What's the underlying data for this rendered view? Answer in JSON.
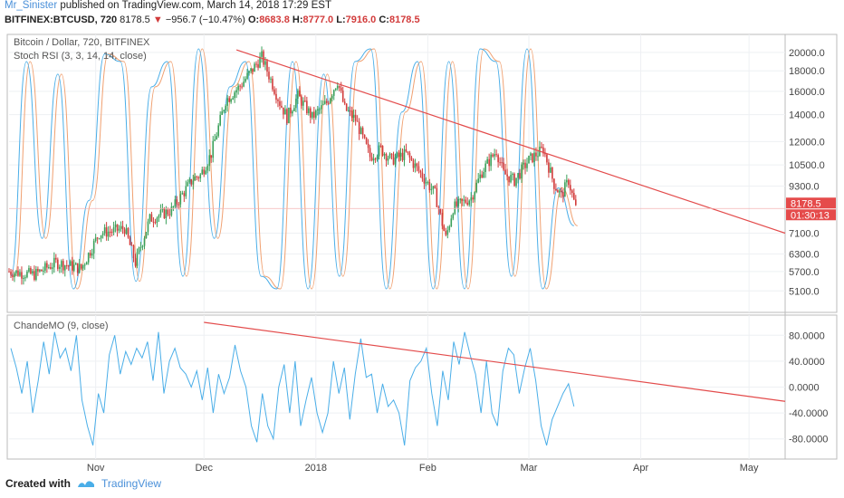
{
  "header": {
    "author": "Mr_Sinister",
    "published": "published on TradingView.com, March 14, 2018 17:29 EST",
    "symbol": "BITFINEX:BTCUSD, 720",
    "last": "8178.5",
    "change": "−956.7 (−10.47%)",
    "o_label": "O:",
    "o": "8683.8",
    "h_label": "H:",
    "h": "8777.0",
    "l_label": "L:",
    "l": "7916.0",
    "c_label": "C:",
    "c": "8178.5"
  },
  "footer": {
    "created_with": "Created with",
    "brand": "TradingView"
  },
  "colors": {
    "up": "#3aa05a",
    "down": "#d23b3b",
    "stoch_k": "#4aaee8",
    "stoch_d": "#f0a070",
    "cmo": "#4aaee8",
    "trend": "#e34b4b",
    "badge": "#e54b4b"
  },
  "chart_data": [
    {
      "type": "candlestick",
      "title": "Bitcoin / Dollar, 720, BITFINEX",
      "ylim": [
        4700,
        21500
      ],
      "y_scale": "log",
      "y_ticks": [
        "20000.0",
        "18000.0",
        "16000.0",
        "14000.0",
        "12000.0",
        "10500.0",
        "9300.0",
        "7100.0",
        "6300.0",
        "5700.0",
        "5100.0"
      ],
      "price_badge": "8178.5",
      "time_badge": "01:30:13",
      "x_ticks": [
        "Nov",
        "Dec",
        "2018",
        "Feb",
        "Mar",
        "Apr",
        "May"
      ],
      "x_tick_dates": [
        "2017-11-01",
        "2017-12-01",
        "2018-01-01",
        "2018-02-01",
        "2018-03-01",
        "2018-04-01",
        "2018-05-01"
      ],
      "xlim": [
        "2017-10-08",
        "2018-05-11"
      ],
      "last_date": "2018-03-14",
      "close_path": [
        [
          "2017-10-08",
          5700
        ],
        [
          "2017-10-15",
          5600
        ],
        [
          "2017-10-21",
          6000
        ],
        [
          "2017-10-28",
          5800
        ],
        [
          "2017-11-02",
          7100
        ],
        [
          "2017-11-06",
          7200
        ],
        [
          "2017-11-09",
          7300
        ],
        [
          "2017-11-12",
          6000
        ],
        [
          "2017-11-16",
          7700
        ],
        [
          "2017-11-22",
          8100
        ],
        [
          "2017-11-28",
          9700
        ],
        [
          "2017-11-30",
          9900
        ],
        [
          "2017-12-03",
          11200
        ],
        [
          "2017-12-07",
          15200
        ],
        [
          "2017-12-11",
          16500
        ],
        [
          "2017-12-17",
          19500
        ],
        [
          "2017-12-22",
          15000
        ],
        [
          "2017-12-24",
          13800
        ],
        [
          "2017-12-27",
          15600
        ],
        [
          "2017-12-31",
          13800
        ],
        [
          "2018-01-04",
          15000
        ],
        [
          "2018-01-07",
          17000
        ],
        [
          "2018-01-09",
          14500
        ],
        [
          "2018-01-12",
          13600
        ],
        [
          "2018-01-16",
          11000
        ],
        [
          "2018-01-19",
          11500
        ],
        [
          "2018-01-22",
          10800
        ],
        [
          "2018-01-26",
          11200
        ],
        [
          "2018-01-30",
          10000
        ],
        [
          "2018-02-03",
          8900
        ],
        [
          "2018-02-06",
          6900
        ],
        [
          "2018-02-08",
          8200
        ],
        [
          "2018-02-13",
          8700
        ],
        [
          "2018-02-16",
          10100
        ],
        [
          "2018-02-20",
          11400
        ],
        [
          "2018-02-22",
          10000
        ],
        [
          "2018-02-25",
          9600
        ],
        [
          "2018-03-01",
          10800
        ],
        [
          "2018-03-05",
          11500
        ],
        [
          "2018-03-08",
          9400
        ],
        [
          "2018-03-10",
          8800
        ],
        [
          "2018-03-12",
          9600
        ],
        [
          "2018-03-14",
          8178.5
        ]
      ],
      "trendline": {
        "from": [
          "2017-12-10",
          20300
        ],
        "to": [
          "2018-05-11",
          7100
        ]
      }
    },
    {
      "type": "line",
      "title": "Stoch RSI (3, 3, 14, 14, close)",
      "ylim": [
        0,
        100
      ],
      "series": [
        {
          "values_key": "k"
        },
        {
          "values_key": "d"
        }
      ],
      "peaks_k": [
        10,
        95,
        25,
        90,
        5,
        40,
        98,
        95,
        8,
        85,
        95,
        10,
        100,
        25,
        85,
        95,
        10,
        5,
        95,
        5,
        90,
        10,
        95,
        100,
        5,
        75,
        95,
        5,
        95,
        5,
        100,
        95,
        10,
        100,
        5,
        45,
        30
      ],
      "note_points": "alternating peaks/troughs for stochastic RSI on the 0–100 scale, shared x axis"
    },
    {
      "type": "line",
      "title": "ChandeMO (9, close)",
      "ylim": [
        -100,
        100
      ],
      "y_ticks": [
        "80.0000",
        "40.0000",
        "0.0000",
        "-40.0000",
        "-80.0000"
      ],
      "values": [
        60,
        30,
        -10,
        40,
        -40,
        10,
        70,
        20,
        85,
        45,
        60,
        25,
        80,
        -20,
        -60,
        -90,
        -10,
        -40,
        50,
        80,
        20,
        55,
        35,
        60,
        45,
        70,
        10,
        85,
        -10,
        40,
        60,
        30,
        20,
        0,
        25,
        -20,
        30,
        -40,
        20,
        -10,
        15,
        65,
        25,
        0,
        -60,
        -85,
        -10,
        -60,
        -80,
        0,
        35,
        -40,
        40,
        -60,
        -20,
        15,
        -40,
        -70,
        -40,
        40,
        -10,
        30,
        -50,
        20,
        75,
        15,
        20,
        -40,
        5,
        -30,
        -20,
        -40,
        -90,
        10,
        30,
        40,
        60,
        -10,
        -60,
        25,
        -20,
        70,
        35,
        85,
        50,
        20,
        -40,
        40,
        -40,
        -60,
        25,
        60,
        50,
        -10,
        30,
        60,
        10,
        -60,
        -90,
        -50,
        -30,
        -10,
        5,
        -30
      ],
      "trendline": {
        "from": [
          "2017-12-01",
          100
        ],
        "to": [
          "2018-05-11",
          -22
        ]
      }
    }
  ]
}
